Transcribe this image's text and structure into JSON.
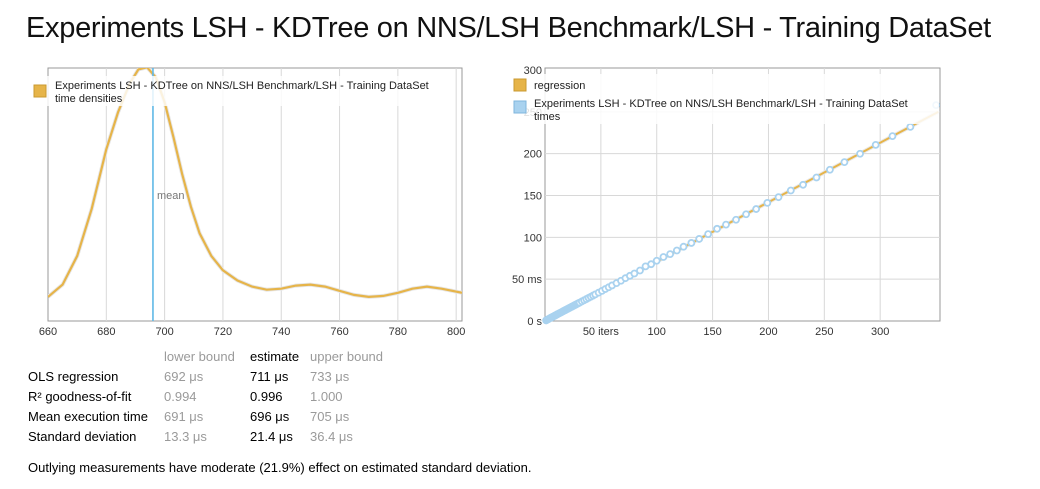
{
  "page_title": "Experiments LSH - KDTree on NNS/LSH Benchmark/LSH - Training DataSet",
  "stats": {
    "headers": [
      "",
      "lower bound",
      "estimate",
      "upper bound"
    ],
    "rows": [
      {
        "label": "OLS regression",
        "lower": "692 μs",
        "estimate": "711 μs",
        "upper": "733 μs"
      },
      {
        "label": "R² goodness-of-fit",
        "lower": "0.994",
        "estimate": "0.996",
        "upper": "1.000"
      },
      {
        "label": "Mean execution time",
        "lower": "691 μs",
        "estimate": "696 μs",
        "upper": "705 μs"
      },
      {
        "label": "Standard deviation",
        "lower": "13.3 μs",
        "estimate": "21.4 μs",
        "upper": "36.4 μs"
      }
    ]
  },
  "note": "Outlying measurements have moderate (21.9%) effect on estimated standard deviation.",
  "colors": {
    "density": "#e6b449",
    "mean_line": "#5fb8e6",
    "regression": "#e6b449",
    "points": "#a9d2ef",
    "grid": "#d8d8d8",
    "frame": "#999999"
  },
  "chart_data": [
    {
      "type": "line",
      "title": "",
      "legend": [
        "Experiments LSH - KDTree on NNS/LSH Benchmark/LSH - Training DataSet time densities"
      ],
      "legend_position": "top-left",
      "grid": true,
      "xlim": [
        660,
        802
      ],
      "x_ticks": [
        "660",
        "680",
        "700",
        "720",
        "740",
        "760",
        "780",
        "800"
      ],
      "mean_label": "mean",
      "mean_value": 696,
      "series": [
        {
          "name": "Experiments LSH - KDTree on NNS/LSH Benchmark/LSH - Training DataSet time densities",
          "x": [
            660,
            665,
            670,
            675,
            680,
            684,
            688,
            691,
            694,
            697,
            700,
            703,
            706,
            709,
            712,
            716,
            720,
            725,
            730,
            735,
            740,
            745,
            750,
            755,
            760,
            765,
            770,
            775,
            780,
            785,
            790,
            795,
            802
          ],
          "y": [
            0.02,
            0.08,
            0.22,
            0.45,
            0.74,
            0.92,
            1.06,
            1.13,
            1.14,
            1.09,
            0.97,
            0.8,
            0.62,
            0.46,
            0.33,
            0.22,
            0.15,
            0.1,
            0.07,
            0.055,
            0.06,
            0.075,
            0.08,
            0.07,
            0.05,
            0.03,
            0.02,
            0.025,
            0.04,
            0.06,
            0.07,
            0.06,
            0.04
          ]
        }
      ]
    },
    {
      "type": "scatter",
      "title": "",
      "legend": [
        "regression",
        "Experiments LSH - KDTree on NNS/LSH Benchmark/LSH - Training DataSet times"
      ],
      "legend_position": "top-left",
      "grid": true,
      "xlim": [
        0,
        350
      ],
      "ylim": [
        0,
        300
      ],
      "x_ticks": [
        "50 iters",
        "100",
        "150",
        "200",
        "250",
        "300"
      ],
      "y_ticks": [
        "0 s",
        "50 ms",
        "100",
        "150",
        "200",
        "250",
        "300"
      ],
      "regression": {
        "x": [
          0,
          352
        ],
        "y": [
          0,
          250
        ]
      },
      "series": [
        {
          "name": "Experiments LSH - KDTree on NNS/LSH Benchmark/LSH - Training DataSet times",
          "x": [
            1,
            2,
            3,
            4,
            5,
            6,
            7,
            8,
            9,
            10,
            11,
            12,
            13,
            14,
            15,
            16,
            17,
            18,
            19,
            20,
            21,
            22,
            23,
            24,
            25,
            26,
            27,
            28,
            29,
            30,
            31,
            33,
            35,
            37,
            39,
            41,
            43,
            45,
            48,
            51,
            54,
            57,
            60,
            64,
            68,
            72,
            76,
            80,
            85,
            90,
            95,
            100,
            106,
            112,
            118,
            124,
            131,
            138,
            146,
            154,
            162,
            171,
            180,
            189,
            199,
            209,
            220,
            231,
            243,
            255,
            268,
            282,
            296,
            311,
            327,
            350
          ],
          "y": [
            0.7,
            1.5,
            2.2,
            3.0,
            3.7,
            4.4,
            5.1,
            5.8,
            6.5,
            7.2,
            8.0,
            8.7,
            9.4,
            10.0,
            10.8,
            11.5,
            12.2,
            12.9,
            13.6,
            14.3,
            15.0,
            15.7,
            16.4,
            17.1,
            17.8,
            18.5,
            19.2,
            19.9,
            20.6,
            21.3,
            22.0,
            23.4,
            24.8,
            26.2,
            27.6,
            29.0,
            30.4,
            31.8,
            33.9,
            36.0,
            38.2,
            40.3,
            42.5,
            45.3,
            48.1,
            51.2,
            54.0,
            56.8,
            60.4,
            65.3,
            67.9,
            72.0,
            76.5,
            79.9,
            84.3,
            88.8,
            93.3,
            98.1,
            103.8,
            110.2,
            115.2,
            121.0,
            127.6,
            133.8,
            141.2,
            148.0,
            156.0,
            162.8,
            171.5,
            180.8,
            189.9,
            199.9,
            210.5,
            221.0,
            232.0,
            258.0
          ]
        }
      ]
    }
  ]
}
